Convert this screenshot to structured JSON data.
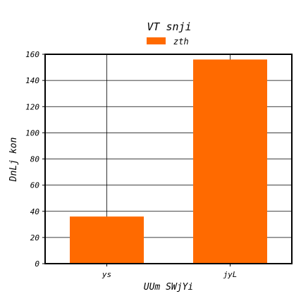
{
  "chart_data": {
    "type": "bar",
    "title": "VT snji",
    "xlabel": "UUm SWjYi",
    "ylabel": "DnLj kon",
    "categories": [
      "ys",
      "jyL"
    ],
    "series": [
      {
        "name": "zth",
        "values": [
          36,
          156
        ],
        "color": "#ff6a00"
      }
    ],
    "ylim": [
      0,
      160
    ],
    "yticks": [
      0,
      20,
      40,
      60,
      80,
      100,
      120,
      140,
      160
    ],
    "grid": true,
    "legend_position": "top-center"
  }
}
